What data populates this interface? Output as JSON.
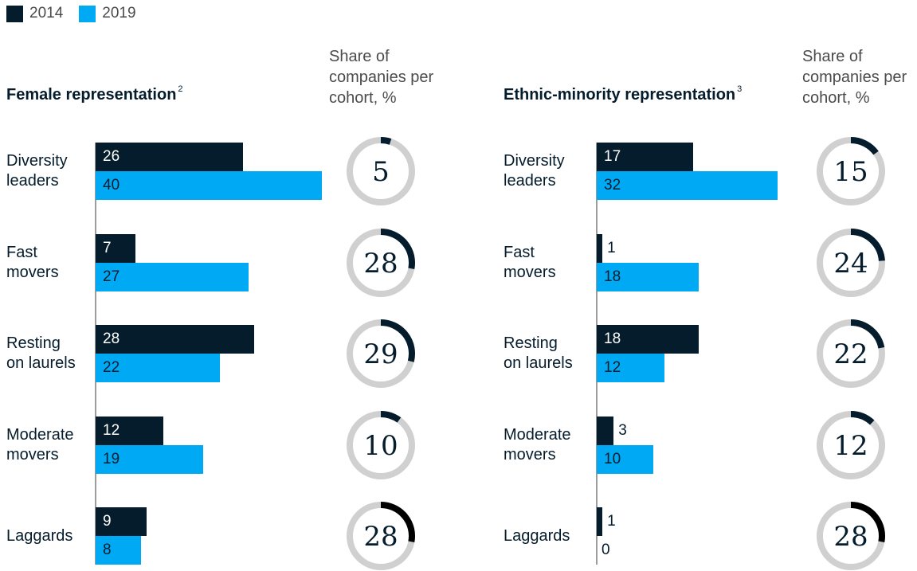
{
  "legend": [
    {
      "label": "2014",
      "color": "#051c2c"
    },
    {
      "label": "2019",
      "color": "#00a9f4"
    }
  ],
  "colors": {
    "dark": "#051c2c",
    "light": "#00a9f4",
    "ring_track": "#d0d0d0",
    "ring_arc_default": "#051c2c",
    "ring_arc_last": "#000000"
  },
  "share_header": "Share of\ncompanies per\ncohort, %",
  "chart_data": [
    {
      "type": "bar",
      "title": "Female representation",
      "footnote": "2",
      "categories": [
        "Diversity\nleaders",
        "Fast\nmovers",
        "Resting\non laurels",
        "Moderate\nmovers",
        "Laggards"
      ],
      "series": [
        {
          "name": "2014",
          "values": [
            26,
            7,
            28,
            12,
            9
          ]
        },
        {
          "name": "2019",
          "values": [
            40,
            27,
            22,
            19,
            8
          ]
        }
      ],
      "share_of_companies": [
        5,
        28,
        29,
        10,
        28
      ]
    },
    {
      "type": "bar",
      "title": "Ethnic-minority representation",
      "footnote": "3",
      "categories": [
        "Diversity\nleaders",
        "Fast\nmovers",
        "Resting\non laurels",
        "Moderate\nmovers",
        "Laggards"
      ],
      "series": [
        {
          "name": "2014",
          "values": [
            17,
            1,
            18,
            3,
            1
          ]
        },
        {
          "name": "2019",
          "values": [
            32,
            18,
            12,
            10,
            0
          ]
        }
      ],
      "share_of_companies": [
        15,
        24,
        22,
        12,
        28
      ]
    }
  ]
}
